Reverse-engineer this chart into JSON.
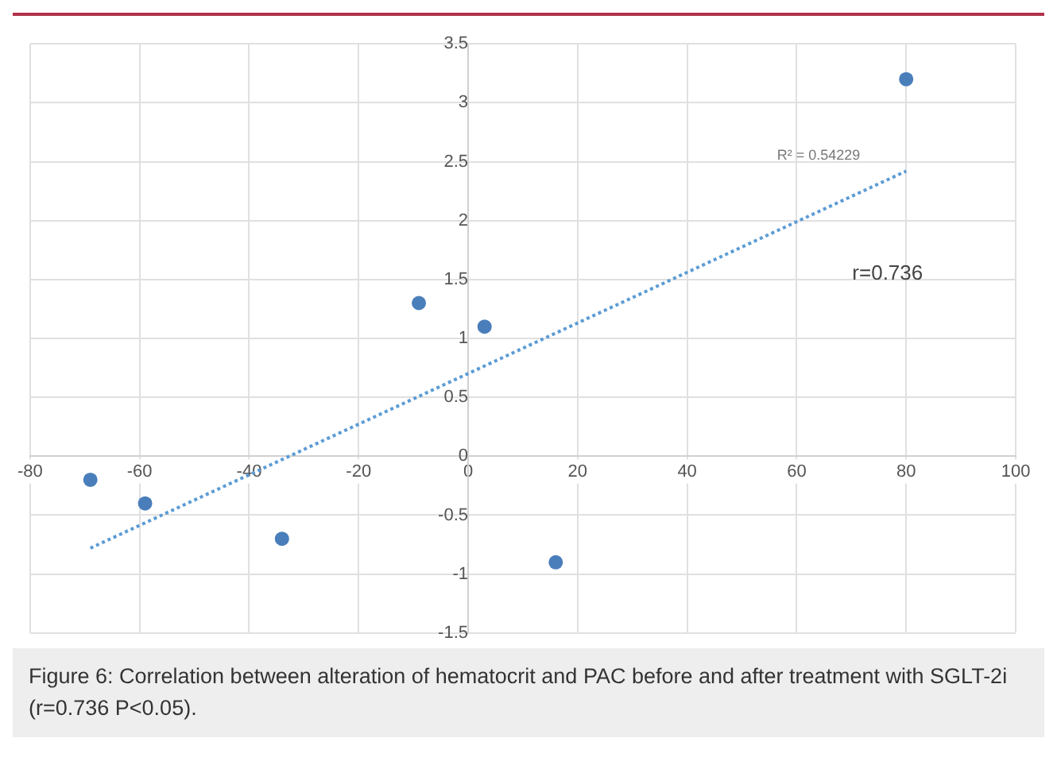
{
  "chart_data": {
    "type": "scatter",
    "xlim": [
      -80,
      100
    ],
    "xticks": [
      -80,
      -60,
      -40,
      -20,
      0,
      20,
      40,
      60,
      80,
      100
    ],
    "ylim": [
      -1.5,
      3.5
    ],
    "yticks": [
      -1.5,
      -1,
      -0.5,
      0,
      0.5,
      1,
      1.5,
      2,
      2.5,
      3,
      3.5
    ],
    "grid": true,
    "legend": false,
    "marker": "circle",
    "series": [
      {
        "type": "scatter",
        "color": "#4a7ebb",
        "x": [
          -69,
          -59,
          -34,
          -9,
          3,
          16,
          80
        ],
        "values": [
          -0.2,
          -0.4,
          -0.7,
          1.3,
          1.1,
          -0.9,
          3.2
        ]
      },
      {
        "type": "line",
        "color": "#5b9bd5",
        "line_style": "dotted",
        "marker": "none",
        "x": [
          -69,
          80
        ],
        "values": [
          -0.78,
          2.42
        ]
      }
    ],
    "annotations": [
      "R² = 0.54229",
      "r=0.736",
      "Figure 6: Correlation between alteration of hematocrit and PAC before and after treatment with SGLT-2i (r=0.736 P<0.05)."
    ]
  }
}
